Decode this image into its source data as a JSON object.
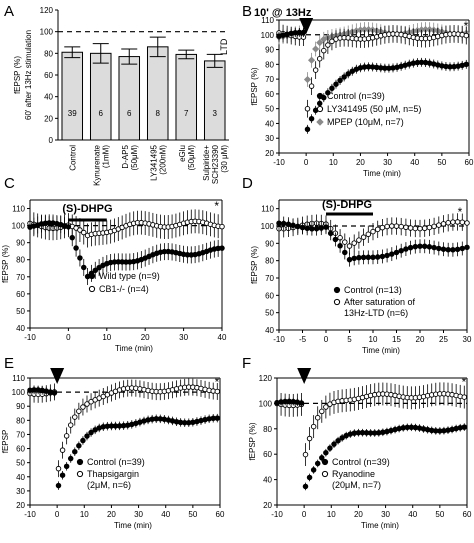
{
  "chart_data": [
    {
      "panel": "A",
      "type": "bar",
      "ylabel_line1": "fEPSP (%)",
      "ylabel_line2": "60' after 13Hz stimulation",
      "ylim": [
        0,
        120
      ],
      "yticks": [
        0,
        20,
        40,
        60,
        80,
        100,
        120
      ],
      "reference_line": 100,
      "categories": [
        [
          "Control"
        ],
        [
          "Kynurenate",
          "(1mM)"
        ],
        [
          "D-AP5",
          "(50μM)"
        ],
        [
          "LY341495",
          "(200nM)"
        ],
        [
          "eGlu",
          "(50μM)"
        ],
        [
          "Sulpiride+",
          "SCH23390",
          "(30 μM)"
        ]
      ],
      "values": [
        81,
        80,
        77,
        86,
        79,
        73
      ],
      "errors": [
        5,
        9,
        7,
        9,
        4,
        6
      ],
      "bar_labels": [
        "39",
        "6",
        "6",
        "8",
        "7",
        "3"
      ],
      "annotation": "LTD"
    },
    {
      "panel": "B",
      "type": "scatter",
      "ylabel": "fEPSP (%)",
      "xlabel": "Time (min)",
      "xlim": [
        -10,
        60
      ],
      "ylim": [
        20,
        110
      ],
      "xticks": [
        -10,
        0,
        10,
        20,
        30,
        40,
        50,
        60
      ],
      "yticks": [
        20,
        30,
        40,
        50,
        60,
        70,
        80,
        90,
        100,
        110
      ],
      "reference_line": 100,
      "stim_label": "10' @ 13Hz",
      "stim_time": 0,
      "star": "*",
      "series": [
        {
          "name": "Control (n=39)",
          "marker": "filled",
          "curve": {
            "baseline": 100,
            "min": 32,
            "plateau": 80,
            "recovery_tau": 8,
            "error": 3
          }
        },
        {
          "name": "LY341495 (50 μM, n=5)",
          "marker": "open",
          "curve": {
            "baseline": 100,
            "min": 45,
            "plateau": 99,
            "recovery_tau": 4,
            "error": 6
          }
        },
        {
          "name": "MPEP (10μM, n=7)",
          "marker": "gray",
          "curve": {
            "baseline": 100,
            "min": 62,
            "plateau": 102,
            "recovery_tau": 3,
            "error": 5
          }
        }
      ]
    },
    {
      "panel": "C",
      "type": "scatter",
      "ylabel": "fEPSP (%)",
      "xlabel": "Time (min)",
      "xlim": [
        -10,
        40
      ],
      "ylim": [
        40,
        115
      ],
      "xticks": [
        -10,
        0,
        10,
        20,
        30,
        40
      ],
      "yticks": [
        40,
        50,
        60,
        70,
        80,
        90,
        100,
        110
      ],
      "reference_line": 100,
      "drug_label": "(S)-DHPG",
      "drug_window": [
        0,
        10
      ],
      "star": "*",
      "series": [
        {
          "name": "Wild type (n=9)",
          "marker": "filled",
          "curve": {
            "baseline": 100,
            "dip": 71,
            "plateau": 86,
            "recovery_tau": 12,
            "error": 5
          }
        },
        {
          "name": "CB1-/- (n=4)",
          "marker": "open",
          "curve": {
            "baseline": 100,
            "dip": 93,
            "plateau": 101,
            "recovery_tau": 6,
            "error": 7
          }
        }
      ]
    },
    {
      "panel": "D",
      "type": "scatter",
      "ylabel": "fEPSP (%)",
      "xlabel": "Time (min)",
      "xlim": [
        -10,
        30
      ],
      "ylim": [
        40,
        115
      ],
      "xticks": [
        -10,
        -5,
        0,
        5,
        10,
        15,
        20,
        25,
        30
      ],
      "yticks": [
        40,
        50,
        60,
        70,
        80,
        90,
        100,
        110
      ],
      "reference_line": 100,
      "drug_label": "(S)-DHPG",
      "drug_window": [
        0,
        10
      ],
      "star": "*",
      "series": [
        {
          "name": "Control (n=13)",
          "marker": "filled",
          "curve": {
            "baseline": 100,
            "dip": 79,
            "plateau": 89,
            "recovery_tau": 10,
            "error": 4
          }
        },
        {
          "name": "After saturation of 13Hz-LTD (n=6)",
          "legend_lines": [
            "After saturation of",
            "13Hz-LTD (n=6)"
          ],
          "marker": "open",
          "curve": {
            "baseline": 100,
            "dip": 90,
            "plateau": 101,
            "recovery_tau": 6,
            "error": 5
          }
        }
      ]
    },
    {
      "panel": "E",
      "type": "scatter",
      "ylabel": "fEPSP",
      "xlabel": "Time (min)",
      "xlim": [
        -10,
        60
      ],
      "ylim": [
        20,
        110
      ],
      "xticks": [
        -10,
        0,
        10,
        20,
        30,
        40,
        50,
        60
      ],
      "yticks": [
        20,
        30,
        40,
        50,
        60,
        70,
        80,
        90,
        100,
        110
      ],
      "reference_line": 100,
      "stim_time": 0,
      "star": "*",
      "series": [
        {
          "name": "Control (n=39)",
          "marker": "filled",
          "curve": {
            "baseline": 100,
            "min": 32,
            "plateau": 80,
            "recovery_tau": 8,
            "error": 3
          }
        },
        {
          "name": "Thapsigargin (2μM, n=6)",
          "legend_lines": [
            "Thapsigargin",
            "(2μM, n=6)"
          ],
          "marker": "open",
          "curve": {
            "baseline": 100,
            "min": 40,
            "plateau": 102,
            "recovery_tau": 6,
            "error": 6
          }
        }
      ]
    },
    {
      "panel": "F",
      "type": "scatter",
      "ylabel": "fEPSP (%)",
      "xlabel": "Time (min)",
      "xlim": [
        -10,
        60
      ],
      "ylim": [
        20,
        120
      ],
      "xticks": [
        -10,
        0,
        10,
        20,
        30,
        40,
        50,
        60
      ],
      "yticks": [
        20,
        40,
        60,
        80,
        100,
        120
      ],
      "reference_line": 100,
      "stim_time": 0,
      "star": "*",
      "series": [
        {
          "name": "Control (n=39)",
          "marker": "filled",
          "curve": {
            "baseline": 100,
            "min": 32,
            "plateau": 80,
            "recovery_tau": 8,
            "error": 3
          }
        },
        {
          "name": "Ryanodine (20μM, n=7)",
          "legend_lines": [
            "Ryanodine",
            "(20μM, n=7)"
          ],
          "marker": "open",
          "curve": {
            "baseline": 100,
            "min": 55,
            "plateau": 106,
            "recovery_tau": 5,
            "error": 9
          }
        }
      ]
    }
  ]
}
